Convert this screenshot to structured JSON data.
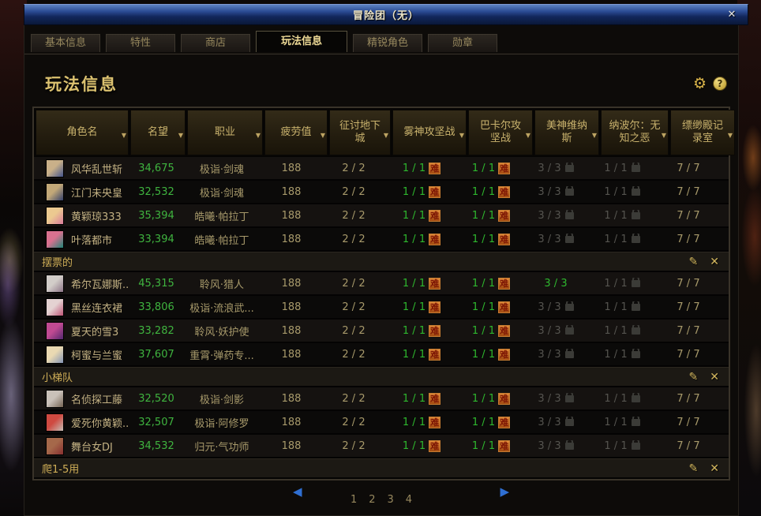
{
  "window": {
    "title": "冒险团（无）"
  },
  "icons": {
    "close": "✕",
    "gear": "⚙",
    "help": "?",
    "sort": "▼",
    "edit": "✎",
    "remove": "✕",
    "prev": "◀",
    "next": "▶"
  },
  "tabs": [
    {
      "label": "基本信息",
      "active": false
    },
    {
      "label": "特性",
      "active": false
    },
    {
      "label": "商店",
      "active": false
    },
    {
      "label": "玩法信息",
      "active": true
    },
    {
      "label": "精锐角色",
      "active": false
    },
    {
      "label": "勋章",
      "active": false
    }
  ],
  "page": {
    "title": "玩法信息"
  },
  "table": {
    "headers": [
      "角色名",
      "名望",
      "职业",
      "疲劳值",
      "征讨地下城",
      "雾神攻坚战",
      "巴卡尔攻坚战",
      "美神维纳斯",
      "纳波尔：无知之恶",
      "缥缈殿记录室"
    ],
    "hard_badge": "难",
    "sections": [
      {
        "header": null,
        "rows": [
          {
            "name": "风华乱世斩",
            "fame": "34,675",
            "job": "极诣·剑魂",
            "fatigue": "188",
            "expedition": "2 / 2",
            "mist": "1 / 1",
            "mist_hard": true,
            "bakal": "1 / 1",
            "bakal_hard": true,
            "venus": "3 / 3",
            "venus_locked": true,
            "napol": "1 / 1",
            "napol_locked": true,
            "record": "7 / 7",
            "avatar": [
              "#c9b089",
              "#44548a"
            ]
          },
          {
            "name": "江门未央皇",
            "fame": "32,532",
            "job": "极诣·剑魂",
            "fatigue": "188",
            "expedition": "2 / 2",
            "mist": "1 / 1",
            "mist_hard": true,
            "bakal": "1 / 1",
            "bakal_hard": true,
            "venus": "3 / 3",
            "venus_locked": true,
            "napol": "1 / 1",
            "napol_locked": true,
            "record": "7 / 7",
            "avatar": [
              "#c2a878",
              "#34406a"
            ]
          },
          {
            "name": "黄颖琼333",
            "fame": "35,394",
            "job": "皓曦·帕拉丁",
            "fatigue": "188",
            "expedition": "2 / 2",
            "mist": "1 / 1",
            "mist_hard": true,
            "bakal": "1 / 1",
            "bakal_hard": true,
            "venus": "3 / 3",
            "venus_locked": true,
            "napol": "1 / 1",
            "napol_locked": true,
            "record": "7 / 7",
            "avatar": [
              "#ecc990",
              "#d87b9c"
            ]
          },
          {
            "name": "叶落都市",
            "fame": "33,394",
            "job": "皓曦·帕拉丁",
            "fatigue": "188",
            "expedition": "2 / 2",
            "mist": "1 / 1",
            "mist_hard": true,
            "bakal": "1 / 1",
            "bakal_hard": true,
            "venus": "3 / 3",
            "venus_locked": true,
            "napol": "1 / 1",
            "napol_locked": true,
            "record": "7 / 7",
            "avatar": [
              "#d8718f",
              "#1f8577"
            ]
          }
        ]
      },
      {
        "header": "摆票的",
        "rows": [
          {
            "name": "希尔瓦娜斯...",
            "fame": "45,315",
            "job": "聆风·猎人",
            "fatigue": "188",
            "expedition": "2 / 2",
            "mist": "1 / 1",
            "mist_hard": true,
            "bakal": "1 / 1",
            "bakal_hard": true,
            "venus": "3 / 3",
            "venus_locked": false,
            "napol": "1 / 1",
            "napol_locked": true,
            "record": "7 / 7",
            "avatar": [
              "#d2cdc9",
              "#8d7587"
            ]
          },
          {
            "name": "黑丝连衣裙",
            "fame": "33,806",
            "job": "极诣·流浪武...",
            "fatigue": "188",
            "expedition": "2 / 2",
            "mist": "1 / 1",
            "mist_hard": true,
            "bakal": "1 / 1",
            "bakal_hard": true,
            "venus": "3 / 3",
            "venus_locked": true,
            "napol": "1 / 1",
            "napol_locked": true,
            "record": "7 / 7",
            "avatar": [
              "#e4d2d2",
              "#bd5476"
            ]
          },
          {
            "name": "夏天的雪3",
            "fame": "33,282",
            "job": "聆风·妖护使",
            "fatigue": "188",
            "expedition": "2 / 2",
            "mist": "1 / 1",
            "mist_hard": true,
            "bakal": "1 / 1",
            "bakal_hard": true,
            "venus": "3 / 3",
            "venus_locked": true,
            "napol": "1 / 1",
            "napol_locked": true,
            "record": "7 / 7",
            "avatar": [
              "#c04a92",
              "#53276f"
            ]
          },
          {
            "name": "柯蜜与兰蜜",
            "fame": "37,607",
            "job": "重霄·弹药专...",
            "fatigue": "188",
            "expedition": "2 / 2",
            "mist": "1 / 1",
            "mist_hard": true,
            "bakal": "1 / 1",
            "bakal_hard": true,
            "venus": "3 / 3",
            "venus_locked": true,
            "napol": "1 / 1",
            "napol_locked": true,
            "record": "7 / 7",
            "avatar": [
              "#ead9b2",
              "#8494b4"
            ]
          }
        ]
      },
      {
        "header": "小梯队",
        "rows": [
          {
            "name": "名侦探工藤",
            "fame": "32,520",
            "job": "极诣·剑影",
            "fatigue": "188",
            "expedition": "2 / 2",
            "mist": "1 / 1",
            "mist_hard": true,
            "bakal": "1 / 1",
            "bakal_hard": true,
            "venus": "3 / 3",
            "venus_locked": true,
            "napol": "1 / 1",
            "napol_locked": true,
            "record": "7 / 7",
            "avatar": [
              "#c9c1b9",
              "#746453"
            ]
          },
          {
            "name": "爱死你黄颖...",
            "fame": "32,507",
            "job": "极诣·阿修罗",
            "fatigue": "188",
            "expedition": "2 / 2",
            "mist": "1 / 1",
            "mist_hard": true,
            "bakal": "1 / 1",
            "bakal_hard": true,
            "venus": "3 / 3",
            "venus_locked": true,
            "napol": "1 / 1",
            "napol_locked": true,
            "record": "7 / 7",
            "avatar": [
              "#cf4a41",
              "#c6beb6"
            ]
          },
          {
            "name": "舞台女DJ",
            "fame": "34,532",
            "job": "归元·气功师",
            "fatigue": "188",
            "expedition": "2 / 2",
            "mist": "1 / 1",
            "mist_hard": true,
            "bakal": "1 / 1",
            "bakal_hard": true,
            "venus": "3 / 3",
            "venus_locked": true,
            "napol": "1 / 1",
            "napol_locked": true,
            "record": "7 / 7",
            "avatar": [
              "#a5684a",
              "#872f2f"
            ]
          }
        ]
      },
      {
        "header": "爬1-5用",
        "rows": []
      }
    ]
  },
  "pagination": {
    "pages": [
      "1",
      "2",
      "3",
      "4"
    ]
  },
  "colors": {
    "accent_green": "#2eb82e",
    "fame_green": "#3fb43f",
    "gold": "#dcc270",
    "locked_gray": "#55544f",
    "hard_badge_bg": "#b85a1c",
    "pager_blue": "#2f6fd2"
  }
}
